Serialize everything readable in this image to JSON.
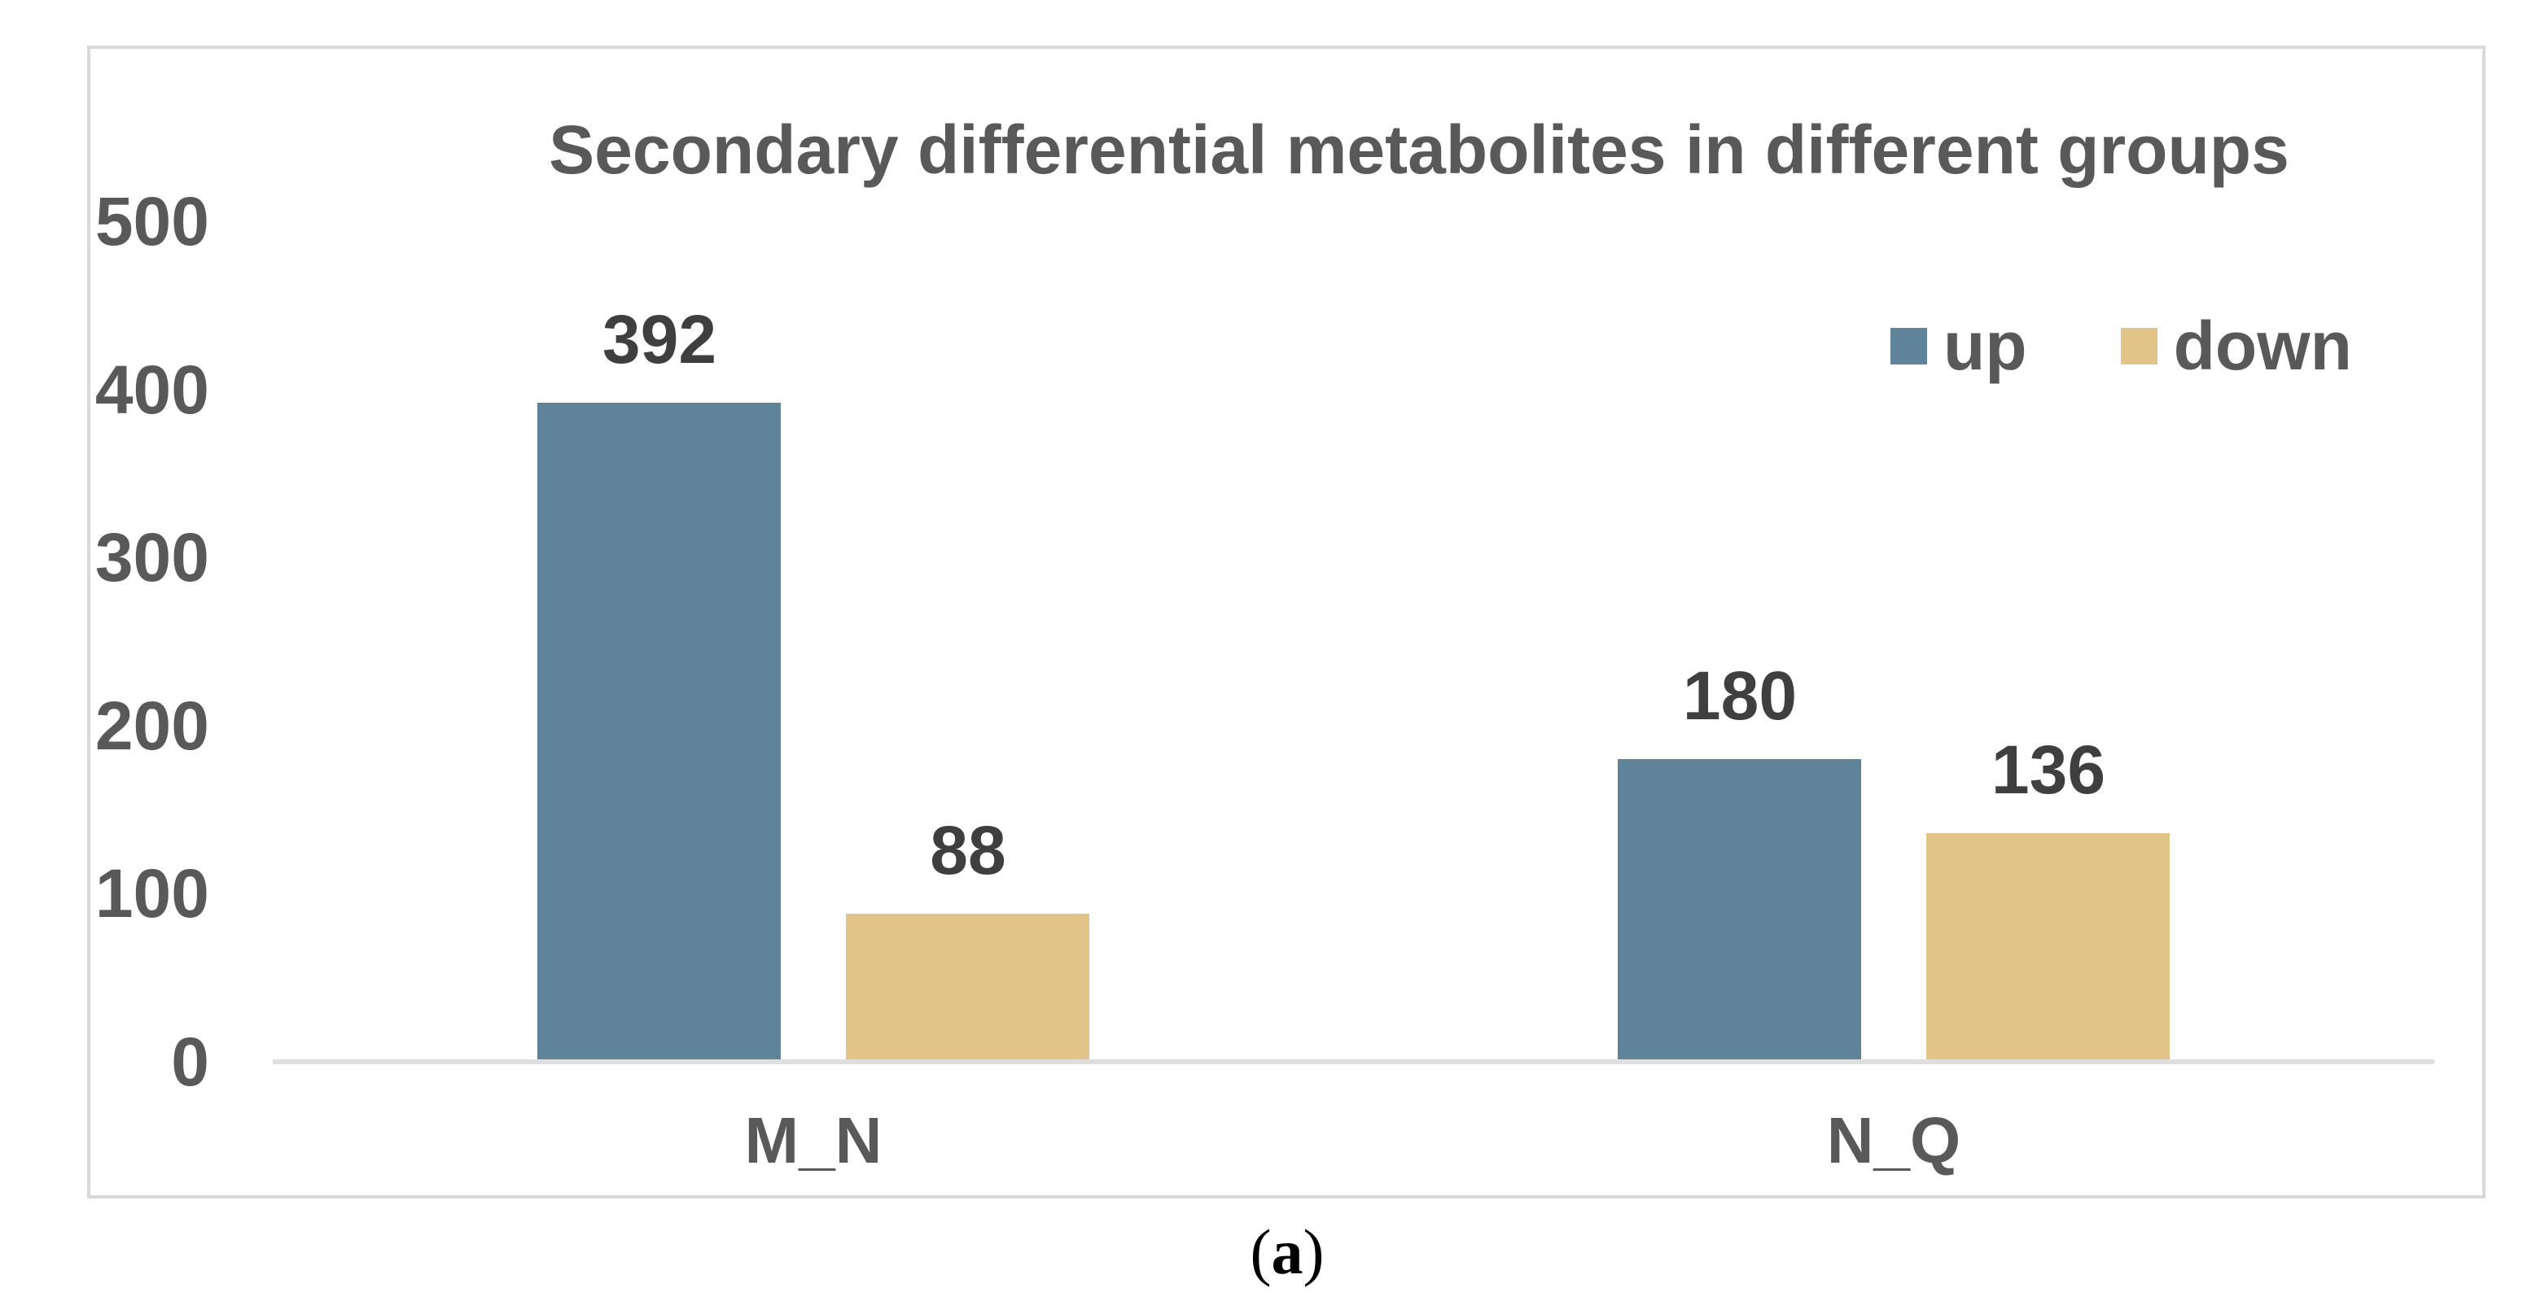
{
  "figure": {
    "caption_prefix": "(",
    "caption_label": "a",
    "caption_suffix": ")"
  },
  "chart_data": {
    "type": "bar",
    "title": "Secondary differential metabolites in different groups",
    "categories": [
      "M_N",
      "N_Q"
    ],
    "series": [
      {
        "name": "up",
        "color": "#5F8499",
        "values": [
          392,
          180
        ]
      },
      {
        "name": "down",
        "color": "#E2C489",
        "values": [
          88,
          136
        ]
      }
    ],
    "ylim": [
      0,
      500
    ],
    "yticks": [
      0,
      100,
      200,
      300,
      400,
      500
    ],
    "grid": false,
    "legend_position": "top-right",
    "data_labels": true
  },
  "colors": {
    "text_primary": "#595959",
    "data_label": "#3F3F3F",
    "frame_border": "#D9D9D9",
    "axis_line": "#DEDEDE",
    "background": "#FFFFFF"
  }
}
